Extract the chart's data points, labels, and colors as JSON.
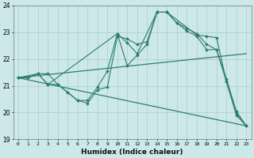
{
  "title": "",
  "xlabel": "Humidex (Indice chaleur)",
  "ylabel": "",
  "bg_color": "#cce8e8",
  "line_color": "#2e7d6e",
  "grid_color": "#aacccc",
  "xlim": [
    -0.5,
    23.5
  ],
  "ylim": [
    19,
    24
  ],
  "yticks": [
    19,
    20,
    21,
    22,
    23,
    24
  ],
  "xticks": [
    0,
    1,
    2,
    3,
    4,
    5,
    6,
    7,
    8,
    9,
    10,
    11,
    12,
    13,
    14,
    15,
    16,
    17,
    18,
    19,
    20,
    21,
    22,
    23
  ],
  "series": [
    {
      "x": [
        0,
        1,
        2,
        3,
        4,
        5,
        6,
        7,
        8,
        9,
        10,
        11,
        12,
        13,
        14,
        15,
        16,
        17,
        18,
        19,
        20,
        21,
        22,
        23
      ],
      "y": [
        21.3,
        21.3,
        21.45,
        21.45,
        21.05,
        20.75,
        20.45,
        20.35,
        20.85,
        20.95,
        22.85,
        22.75,
        22.55,
        22.65,
        23.75,
        23.75,
        23.35,
        23.15,
        22.95,
        22.55,
        22.35,
        21.25,
        20.05,
        19.5
      ],
      "marker": "D",
      "markersize": 1.8,
      "linewidth": 0.8
    },
    {
      "x": [
        0,
        1,
        2,
        3,
        4,
        5,
        6,
        7,
        8,
        9,
        10,
        11,
        12,
        13,
        14,
        15,
        16,
        17,
        18,
        19,
        20,
        21,
        22,
        23
      ],
      "y": [
        21.3,
        21.3,
        21.45,
        21.05,
        21.05,
        20.75,
        20.45,
        20.45,
        20.95,
        21.55,
        22.95,
        21.75,
        22.15,
        22.55,
        23.75,
        23.75,
        23.35,
        23.05,
        22.85,
        22.35,
        22.35,
        21.15,
        19.95,
        19.5
      ],
      "marker": "D",
      "markersize": 1.8,
      "linewidth": 0.8
    },
    {
      "x": [
        0,
        2,
        3,
        10,
        11,
        12,
        14,
        15,
        18,
        19,
        20,
        21,
        22,
        23
      ],
      "y": [
        21.3,
        21.45,
        21.05,
        22.95,
        22.6,
        22.2,
        23.75,
        23.75,
        22.9,
        22.85,
        22.8,
        21.15,
        19.9,
        19.5
      ],
      "marker": "D",
      "markersize": 1.8,
      "linewidth": 0.8
    },
    {
      "x": [
        0,
        23
      ],
      "y": [
        21.3,
        22.2
      ],
      "marker": null,
      "markersize": 0,
      "linewidth": 0.9
    },
    {
      "x": [
        0,
        23
      ],
      "y": [
        21.3,
        19.5
      ],
      "marker": null,
      "markersize": 0,
      "linewidth": 0.9
    }
  ]
}
